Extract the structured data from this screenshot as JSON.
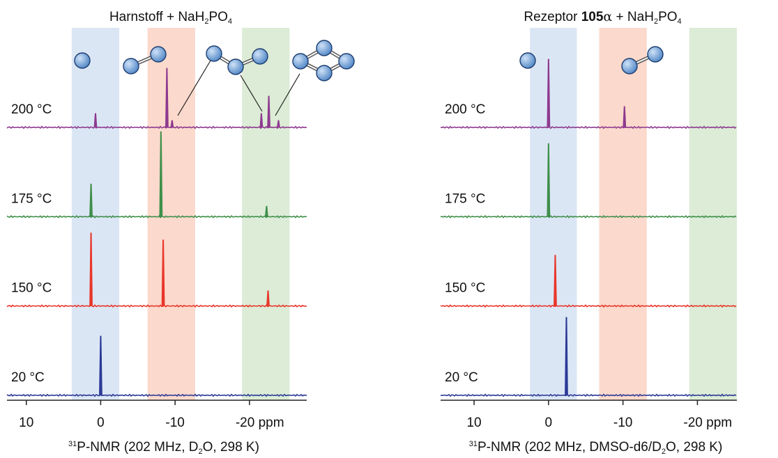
{
  "chart_data": [
    {
      "type": "spectrum",
      "title": [
        "Harnstoff + NaH",
        "2",
        "PO",
        "4"
      ],
      "x_label": [
        "31",
        "P-NMR (202 MHz, D",
        "2",
        "O, 298 K)"
      ],
      "xlim": [
        12.6,
        -27.7
      ],
      "xticks": [
        10,
        0,
        -10,
        {
          "value": -20,
          "label": "-20 ppm"
        }
      ],
      "bands": [
        {
          "color": "#dbe6f5",
          "range": [
            3.9,
            -2.5
          ]
        },
        {
          "color": "#fbd9cc",
          "range": [
            -6.3,
            -12.7
          ]
        },
        {
          "color": "#dcecd6",
          "range": [
            -19.0,
            -25.4
          ]
        }
      ],
      "series": [
        {
          "name": "200 °C",
          "color": "#8e3a8f",
          "peaks": [
            0.7,
            -8.9,
            -9.6,
            -21.6,
            -22.6,
            -23.9
          ],
          "values": [
            20,
            85,
            10,
            20,
            45,
            10
          ]
        },
        {
          "name": "175 °C",
          "color": "#3f8f4a",
          "peaks": [
            1.3,
            -8.1,
            -22.3
          ],
          "values": [
            47,
            122,
            15
          ]
        },
        {
          "name": "150 °C",
          "color": "#e8372a",
          "peaks": [
            1.3,
            -8.4,
            -22.5
          ],
          "values": [
            105,
            95,
            22
          ]
        },
        {
          "name": "20 °C",
          "color": "#2b3a96",
          "peaks": [
            0
          ],
          "values": [
            85
          ]
        }
      ]
    },
    {
      "type": "spectrum",
      "title": [
        "Rezeptor ",
        "105",
        "α",
        " + NaH",
        "2",
        "PO",
        "4"
      ],
      "x_label": [
        "31",
        "P-NMR (202 MHz, DMSO-d6/D",
        "2",
        "O, 298 K)"
      ],
      "xlim": [
        14.5,
        -25.3
      ],
      "xticks": [
        10,
        0,
        -10,
        {
          "value": -20,
          "label": "-20 ppm"
        }
      ],
      "bands": [
        {
          "color": "#dbe6f5",
          "range": [
            2.5,
            -3.8
          ]
        },
        {
          "color": "#fbd9cc",
          "range": [
            -6.8,
            -13.2
          ]
        },
        {
          "color": "#dcecd6",
          "range": [
            -18.9,
            -25.3
          ]
        }
      ],
      "series": [
        {
          "name": "200 °C",
          "color": "#8e3a8f",
          "peaks": [
            0.0,
            -10.2
          ],
          "values": [
            98,
            30
          ]
        },
        {
          "name": "175 °C",
          "color": "#3f8f4a",
          "peaks": [
            0.0
          ],
          "values": [
            105
          ]
        },
        {
          "name": "150 °C",
          "color": "#e8372a",
          "peaks": [
            -0.9
          ],
          "values": [
            73
          ]
        },
        {
          "name": "20 °C",
          "color": "#2b3a96",
          "peaks": [
            -2.4
          ],
          "values": [
            112
          ]
        }
      ]
    }
  ]
}
